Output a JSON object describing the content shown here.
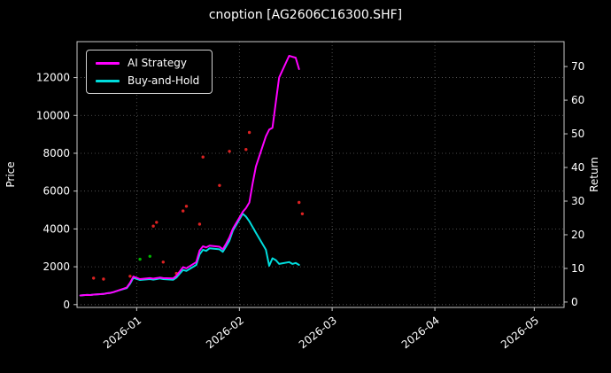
{
  "legend": [
    {
      "label": "AI Strategy",
      "color": "#ff00ff"
    },
    {
      "label": "Buy-and-Hold",
      "color": "#00dddd"
    }
  ],
  "chart_data": {
    "type": "line",
    "title": "cnoption [AG2606C16300.SHF]",
    "xlabel": "",
    "ylabel_left": "Price",
    "ylabel_right": "Return",
    "background": "#000000",
    "grid": true,
    "legend_position": "upper left",
    "x_domain": [
      "2025-12-14",
      "2026-05-10"
    ],
    "left_domain": [
      -150,
      13900
    ],
    "right_domain": [
      -1.6,
      77.4
    ],
    "left_ticks": [
      0,
      2000,
      4000,
      6000,
      8000,
      10000,
      12000
    ],
    "right_ticks": [
      0,
      10,
      20,
      30,
      40,
      50,
      60,
      70
    ],
    "x_ticks": [
      {
        "value": "2026-01-01",
        "label": "2026-01"
      },
      {
        "value": "2026-02-01",
        "label": "2026-02"
      },
      {
        "value": "2026-03-01",
        "label": "2026-03"
      },
      {
        "value": "2026-04-01",
        "label": "2026-04"
      },
      {
        "value": "2026-05-01",
        "label": "2026-05"
      }
    ],
    "x": [
      "2025-12-15",
      "2025-12-16",
      "2025-12-17",
      "2025-12-18",
      "2025-12-19",
      "2025-12-22",
      "2025-12-23",
      "2025-12-24",
      "2025-12-25",
      "2025-12-26",
      "2025-12-29",
      "2025-12-30",
      "2025-12-31",
      "2026-01-02",
      "2026-01-05",
      "2026-01-06",
      "2026-01-07",
      "2026-01-08",
      "2026-01-09",
      "2026-01-12",
      "2026-01-13",
      "2026-01-14",
      "2026-01-15",
      "2026-01-16",
      "2026-01-19",
      "2026-01-20",
      "2026-01-21",
      "2026-01-22",
      "2026-01-23",
      "2026-01-26",
      "2026-01-27",
      "2026-01-28",
      "2026-01-29",
      "2026-01-30",
      "2026-02-02",
      "2026-02-03",
      "2026-02-04",
      "2026-02-05",
      "2026-02-06",
      "2026-02-09",
      "2026-02-10",
      "2026-02-11",
      "2026-02-12",
      "2026-02-13",
      "2026-02-16",
      "2026-02-17",
      "2026-02-18",
      "2026-02-19"
    ],
    "series": [
      {
        "name": "AI Strategy",
        "color": "#ff00ff",
        "axis": "left",
        "values": [
          480,
          500,
          510,
          505,
          530,
          560,
          600,
          620,
          660,
          720,
          900,
          1150,
          1480,
          1350,
          1400,
          1370,
          1400,
          1430,
          1400,
          1380,
          1520,
          1750,
          1980,
          1920,
          2250,
          2850,
          3080,
          3020,
          3120,
          3060,
          2920,
          3220,
          3550,
          4000,
          4900,
          5100,
          5400,
          6400,
          7300,
          8900,
          9250,
          9350,
          10700,
          12000,
          13150,
          13100,
          13050,
          12450
        ]
      },
      {
        "name": "Buy-and-Hold",
        "color": "#00dddd",
        "axis": "left",
        "values": [
          480,
          500,
          510,
          505,
          530,
          560,
          600,
          620,
          660,
          720,
          870,
          1100,
          1420,
          1300,
          1350,
          1320,
          1350,
          1380,
          1350,
          1310,
          1430,
          1640,
          1830,
          1780,
          2100,
          2650,
          2900,
          2840,
          2980,
          2920,
          2790,
          3080,
          3380,
          3900,
          4800,
          4650,
          4400,
          4100,
          3800,
          2900,
          2050,
          2450,
          2350,
          2150,
          2250,
          2150,
          2200,
          2100
        ]
      }
    ],
    "scatter": [
      {
        "x": "2025-12-19",
        "y": 1400,
        "color": "#dd2222"
      },
      {
        "x": "2025-12-22",
        "y": 1350,
        "color": "#dd2222"
      },
      {
        "x": "2025-12-30",
        "y": 1500,
        "color": "#dd2222"
      },
      {
        "x": "2026-01-02",
        "y": 2400,
        "color": "#00b400"
      },
      {
        "x": "2026-01-05",
        "y": 2550,
        "color": "#00b400"
      },
      {
        "x": "2026-01-06",
        "y": 4150,
        "color": "#dd2222"
      },
      {
        "x": "2026-01-07",
        "y": 4350,
        "color": "#dd2222"
      },
      {
        "x": "2026-01-09",
        "y": 2250,
        "color": "#dd2222"
      },
      {
        "x": "2026-01-13",
        "y": 1650,
        "color": "#dd2222"
      },
      {
        "x": "2026-01-15",
        "y": 4950,
        "color": "#dd2222"
      },
      {
        "x": "2026-01-16",
        "y": 5200,
        "color": "#dd2222"
      },
      {
        "x": "2026-01-20",
        "y": 4250,
        "color": "#dd2222"
      },
      {
        "x": "2026-01-21",
        "y": 7800,
        "color": "#dd2222"
      },
      {
        "x": "2026-01-26",
        "y": 6300,
        "color": "#dd2222"
      },
      {
        "x": "2026-01-29",
        "y": 8100,
        "color": "#dd2222"
      },
      {
        "x": "2026-02-03",
        "y": 8200,
        "color": "#dd2222"
      },
      {
        "x": "2026-02-04",
        "y": 9100,
        "color": "#dd2222"
      },
      {
        "x": "2026-02-19",
        "y": 5400,
        "color": "#dd2222"
      },
      {
        "x": "2026-02-20",
        "y": 4800,
        "color": "#dd2222"
      }
    ]
  }
}
